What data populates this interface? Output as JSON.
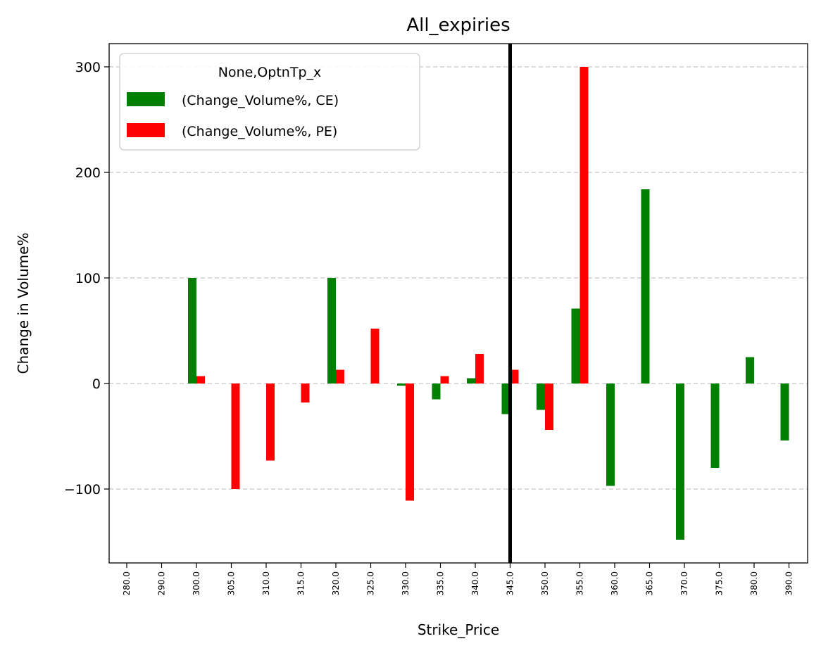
{
  "chart_data": {
    "type": "bar",
    "title": "All_expiries",
    "xlabel": "Strike_Price",
    "ylabel": "Change in Volume%",
    "categories": [
      "280.0",
      "290.0",
      "300.0",
      "305.0",
      "310.0",
      "315.0",
      "320.0",
      "325.0",
      "330.0",
      "335.0",
      "340.0",
      "345.0",
      "350.0",
      "355.0",
      "360.0",
      "365.0",
      "370.0",
      "375.0",
      "380.0",
      "390.0"
    ],
    "series": [
      {
        "name": "(Change_Volume%, CE)",
        "color": "#008000",
        "values": [
          null,
          null,
          100,
          null,
          null,
          null,
          100,
          null,
          -2,
          -15,
          5,
          -29,
          -25,
          71,
          -97,
          184,
          -148,
          -80,
          25,
          -54
        ]
      },
      {
        "name": "(Change_Volume%, PE)",
        "color": "#ff0000",
        "values": [
          null,
          null,
          7,
          -100,
          -73,
          -18,
          13,
          52,
          -111,
          7,
          28,
          13,
          -44,
          300,
          null,
          null,
          null,
          null,
          null,
          null
        ]
      }
    ],
    "ylim": [
      -170,
      322
    ],
    "yticks": [
      -100,
      0,
      100,
      200,
      300
    ],
    "ytick_labels": [
      "−100",
      "0",
      "100",
      "200",
      "300"
    ],
    "grid": "y-dashed",
    "legend": {
      "title": "None,OptnTp_x",
      "placement": "top-left"
    },
    "vline_at_category": "345.0",
    "vline_color": "#000000"
  }
}
